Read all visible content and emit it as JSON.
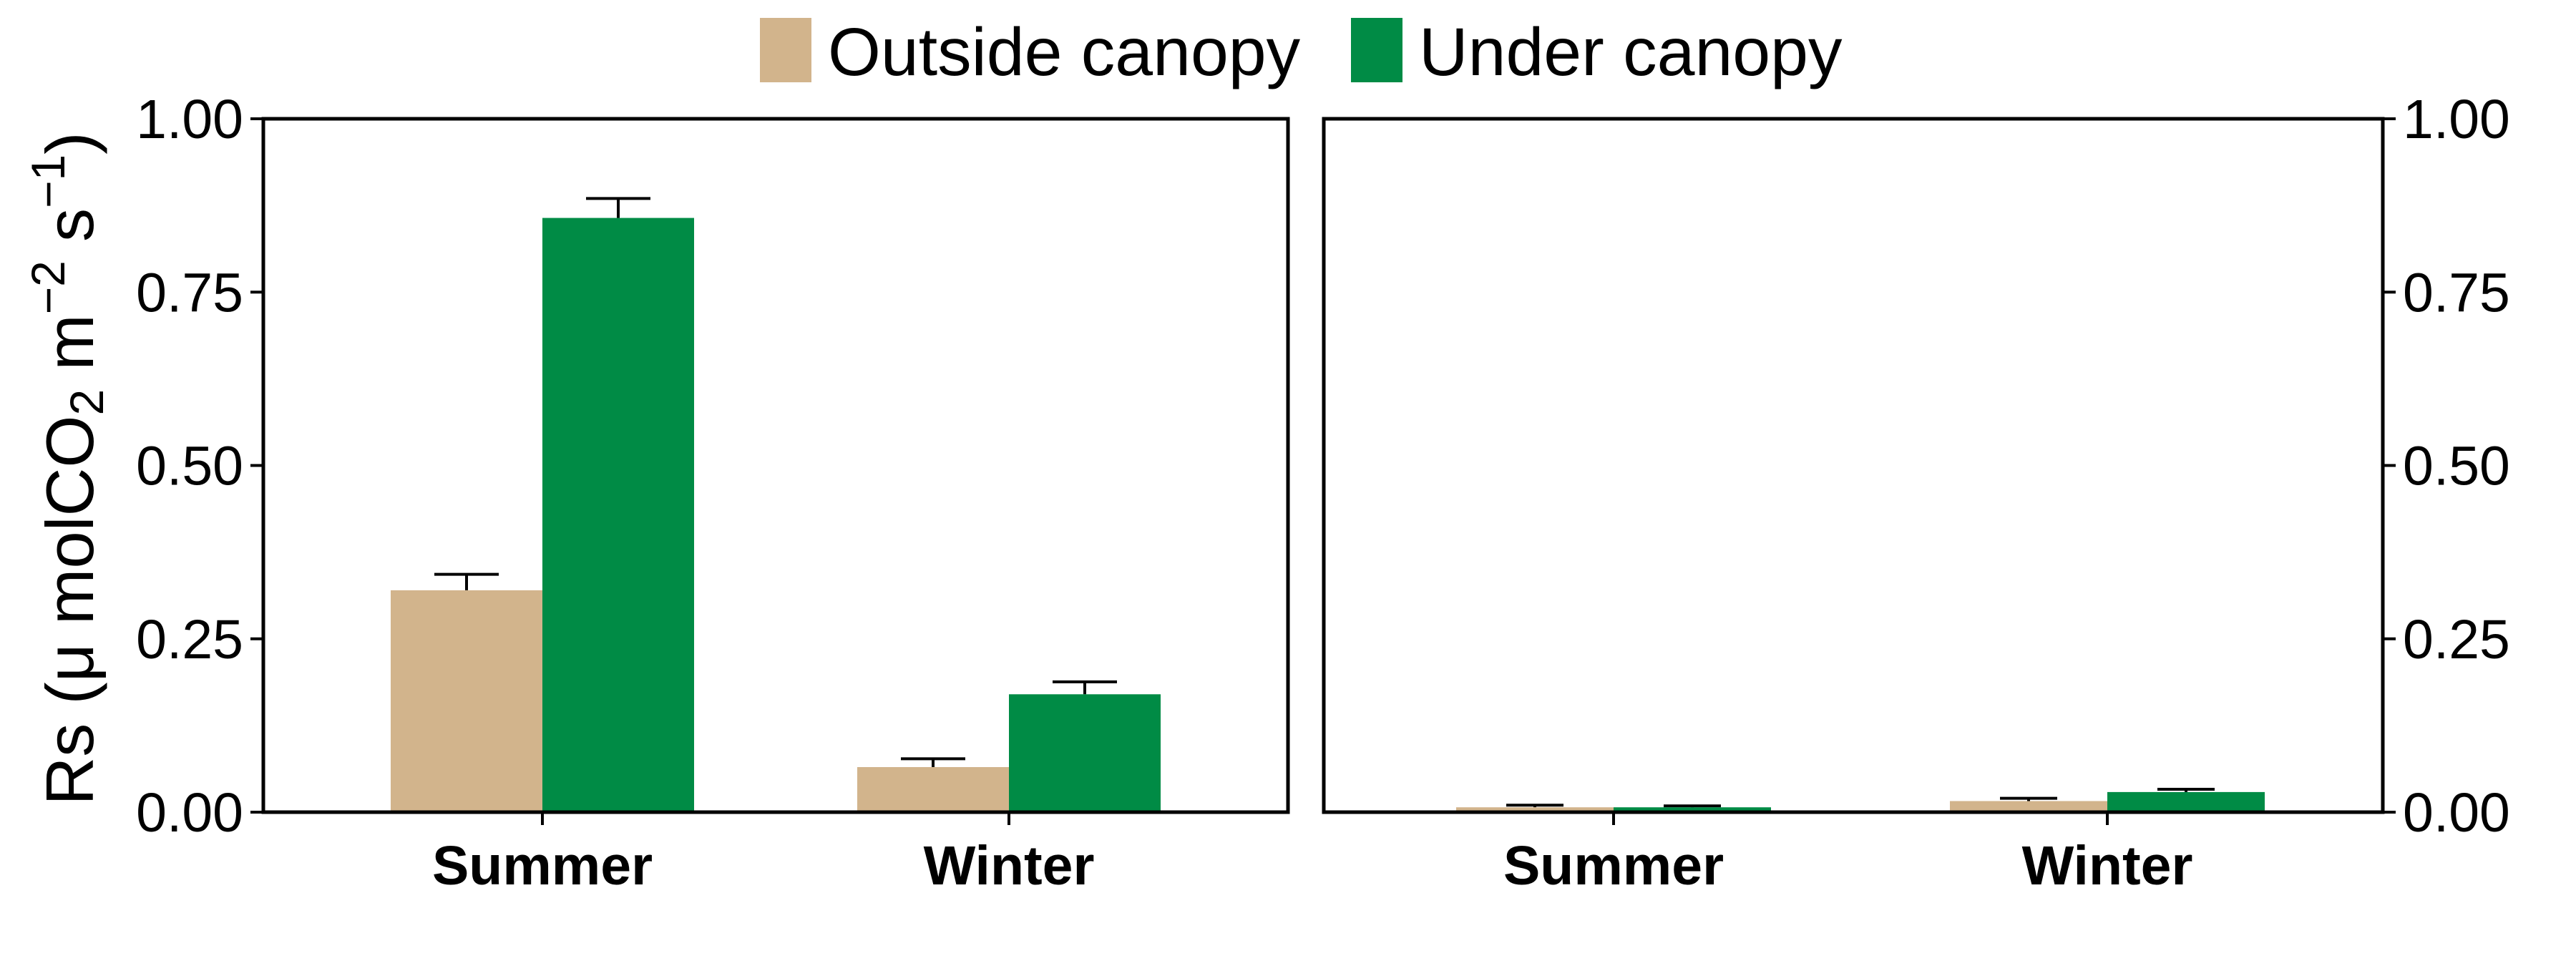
{
  "chart_data": {
    "type": "bar",
    "ylabel": "Rs (μ molCO2 m−2 s−1)",
    "ylabel_parts": {
      "pre": "Rs (",
      "mu": "μ",
      "unit": " molCO",
      "sub": "2",
      "m": " m",
      "sup1": "−2",
      "s": " s",
      "sup2": "−1",
      "close": ")"
    },
    "legend": {
      "position": "top-center",
      "entries": [
        {
          "name": "Outside canopy",
          "color": "#d2b48c"
        },
        {
          "name": "Under canopy",
          "color": "#008b45"
        }
      ]
    },
    "panels": [
      {
        "categories": [
          "Summer",
          "Winter"
        ],
        "ylim": [
          0,
          1.0
        ],
        "yticks": [
          0,
          0.25,
          0.5,
          0.75,
          1.0
        ],
        "ytick_labels": [
          "0.00",
          "0.25",
          "0.50",
          "0.75",
          "1.00"
        ],
        "y_axis_side": "left",
        "series": [
          {
            "name": "Outside canopy",
            "values": [
              0.32,
              0.065
            ],
            "errors": [
              0.023,
              0.012
            ]
          },
          {
            "name": "Under canopy",
            "values": [
              0.857,
              0.17
            ],
            "errors": [
              0.028,
              0.018
            ]
          }
        ]
      },
      {
        "categories": [
          "Summer",
          "Winter"
        ],
        "ylim": [
          0,
          1.0
        ],
        "yticks": [
          0,
          0.25,
          0.5,
          0.75,
          1.0
        ],
        "ytick_labels": [
          "0.00",
          "0.25",
          "0.50",
          "0.75",
          "1.00"
        ],
        "y_axis_side": "right",
        "series": [
          {
            "name": "Outside canopy",
            "values": [
              0.007,
              0.016
            ],
            "errors": [
              0.003,
              0.004
            ]
          },
          {
            "name": "Under canopy",
            "values": [
              0.007,
              0.029
            ],
            "errors": [
              0.002,
              0.004
            ]
          }
        ]
      }
    ],
    "grid": false
  }
}
